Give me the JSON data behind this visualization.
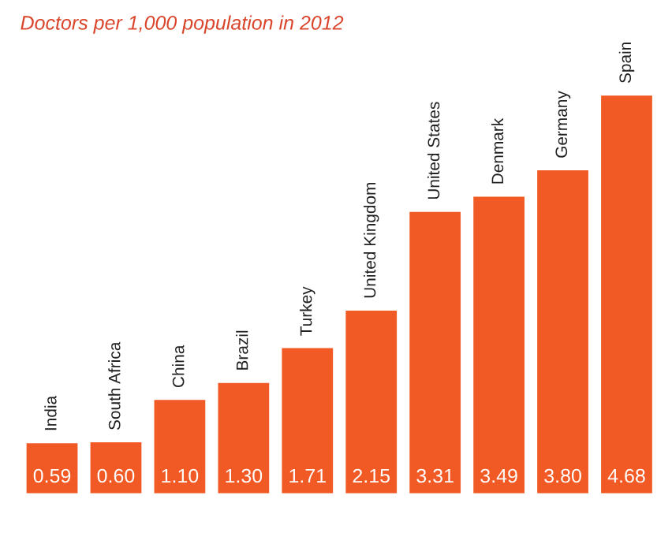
{
  "chart_data": {
    "type": "bar",
    "title": "Doctors per 1,000 population in 2012",
    "categories": [
      "India",
      "South Africa",
      "China",
      "Brazil",
      "Turkey",
      "United Kingdom",
      "United States",
      "Denmark",
      "Germany",
      "Spain"
    ],
    "values": [
      0.59,
      0.6,
      1.1,
      1.3,
      1.71,
      2.15,
      3.31,
      3.49,
      3.8,
      4.68
    ],
    "value_labels": [
      "0.59",
      "0.60",
      "1.10",
      "1.30",
      "1.71",
      "2.15",
      "3.31",
      "3.49",
      "3.80",
      "4.68"
    ],
    "color": "#f15a24"
  }
}
